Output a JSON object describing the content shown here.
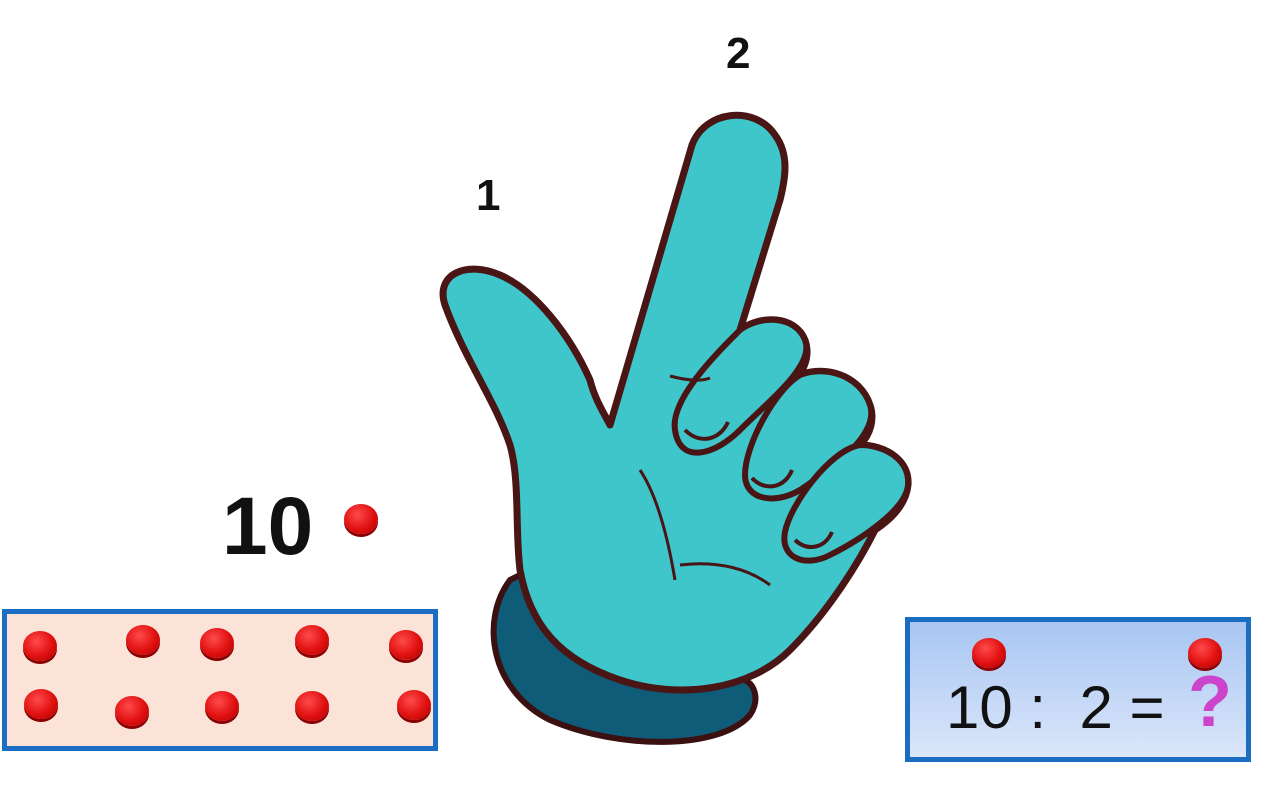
{
  "fingers": {
    "first": "1",
    "second": "2"
  },
  "total": {
    "number": "10"
  },
  "equation": {
    "dividend": "10",
    "operator": ":",
    "divisor": "2",
    "equals": "=",
    "unknown": "?"
  },
  "colors": {
    "hand": "#3fc6cb",
    "cuff": "#0f5c78",
    "outline": "#4a1515",
    "box_border": "#1a6dc0",
    "dots_box_fill": "#fbe3d7",
    "counter": "#e01010",
    "question": "#cc44cc"
  },
  "counters": {
    "in_tray": 10,
    "groups": 2
  }
}
